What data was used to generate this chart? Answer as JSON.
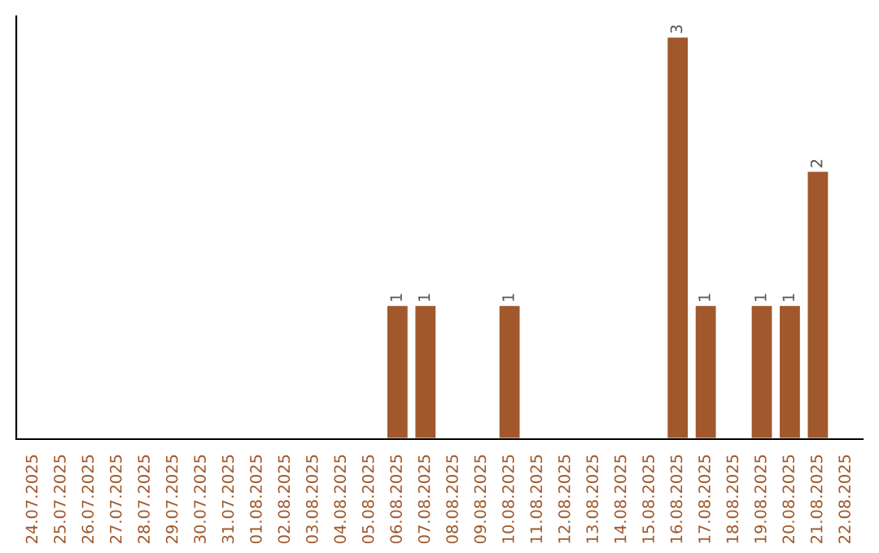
{
  "chart_data": {
    "type": "bar",
    "categories": [
      "24.07.2025",
      "25.07.2025",
      "26.07.2025",
      "27.07.2025",
      "28.07.2025",
      "29.07.2025",
      "30.07.2025",
      "31.07.2025",
      "01.08.2025",
      "02.08.2025",
      "03.08.2025",
      "04.08.2025",
      "05.08.2025",
      "06.08.2025",
      "07.08.2025",
      "08.08.2025",
      "09.08.2025",
      "10.08.2025",
      "11.08.2025",
      "12.08.2025",
      "13.08.2025",
      "14.08.2025",
      "15.08.2025",
      "16.08.2025",
      "17.08.2025",
      "18.08.2025",
      "19.08.2025",
      "20.08.2025",
      "21.08.2025",
      "22.08.2025"
    ],
    "values": [
      null,
      null,
      null,
      null,
      null,
      null,
      null,
      null,
      null,
      null,
      null,
      null,
      null,
      1,
      1,
      null,
      null,
      1,
      null,
      null,
      null,
      null,
      null,
      3,
      1,
      null,
      1,
      1,
      2,
      null
    ],
    "value_labels": [
      null,
      null,
      null,
      null,
      null,
      null,
      null,
      null,
      null,
      null,
      null,
      null,
      null,
      "1",
      "1",
      null,
      null,
      "1",
      null,
      null,
      null,
      null,
      null,
      "3",
      "1",
      null,
      "1",
      "1",
      "2",
      null
    ],
    "color": "#a0582c",
    "tick_labels": "x",
    "grid": false,
    "legend": false
  }
}
